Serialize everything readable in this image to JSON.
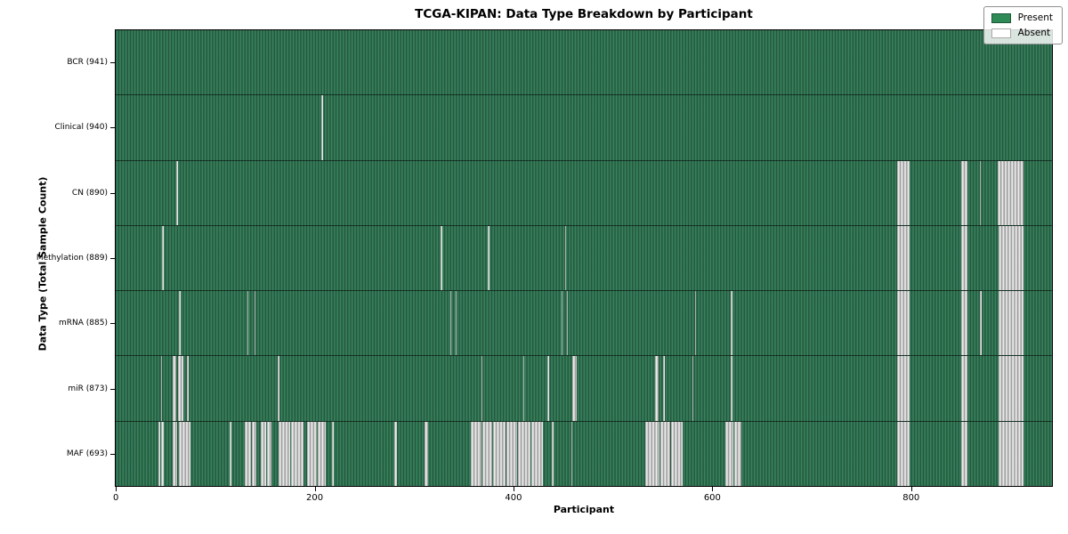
{
  "chart_data": {
    "type": "heatmap",
    "title": "TCGA-KIPAN: Data Type Breakdown by Participant",
    "xlabel": "Participant",
    "ylabel": "Data Type (Total Sample Count)",
    "x_ticks": [
      0,
      200,
      400,
      600,
      800
    ],
    "x_max": 941.5,
    "grid": false,
    "legend_position": "upper right",
    "colors": {
      "present": "#2e8b57",
      "present_edge": "#1d5638",
      "absent": "#ffffff",
      "absent_edge": "#aaaaaa"
    },
    "legend": [
      {
        "label": "Present",
        "color": "#2e8b57",
        "edge": "#1d5638"
      },
      {
        "label": "Absent",
        "color": "#ffffff",
        "edge": "#aaaaaa"
      }
    ],
    "rows": [
      {
        "name": "BCR",
        "count": 941,
        "absent": []
      },
      {
        "name": "Clinical",
        "count": 940,
        "absent": [
          [
            207,
            208.2
          ]
        ]
      },
      {
        "name": "CN",
        "count": 890,
        "absent": [
          [
            60.5,
            62.3
          ],
          [
            786,
            799
          ],
          [
            850.5,
            857
          ],
          [
            869,
            870.2
          ],
          [
            887.5,
            913
          ]
        ]
      },
      {
        "name": "Methylation",
        "count": 889,
        "absent": [
          [
            46.5,
            48
          ],
          [
            327,
            328.2
          ],
          [
            374.5,
            375.7
          ],
          [
            452,
            453.2
          ],
          [
            786,
            799
          ],
          [
            850.5,
            857
          ],
          [
            888.5,
            913
          ]
        ]
      },
      {
        "name": "mRNA",
        "count": 885,
        "absent": [
          [
            63.5,
            65
          ],
          [
            132.5,
            133.7
          ],
          [
            139.5,
            141
          ],
          [
            336.5,
            337.7
          ],
          [
            342,
            343
          ],
          [
            448.5,
            449.7
          ],
          [
            453.5,
            454.7
          ],
          [
            583,
            584
          ],
          [
            619,
            620
          ],
          [
            786,
            799
          ],
          [
            850.5,
            857
          ],
          [
            869.5,
            871
          ],
          [
            888.5,
            913
          ]
        ]
      },
      {
        "name": "miR",
        "count": 873,
        "absent": [
          [
            45.5,
            47
          ],
          [
            57.5,
            61
          ],
          [
            62.5,
            68.5
          ],
          [
            71.5,
            73
          ],
          [
            163,
            164.5
          ],
          [
            368,
            369.2
          ],
          [
            410,
            411.2
          ],
          [
            434.5,
            435.7
          ],
          [
            459,
            464
          ],
          [
            543,
            546.5
          ],
          [
            550.5,
            552
          ],
          [
            580,
            581.5
          ],
          [
            619,
            620.5
          ],
          [
            786,
            799
          ],
          [
            850.5,
            857
          ],
          [
            888.5,
            913
          ]
        ]
      },
      {
        "name": "MAF",
        "count": 693,
        "absent": [
          [
            43,
            45
          ],
          [
            46,
            48.5
          ],
          [
            57,
            62
          ],
          [
            63.5,
            75
          ],
          [
            115,
            116.5
          ],
          [
            130,
            136
          ],
          [
            137,
            141.5
          ],
          [
            146,
            151
          ],
          [
            152,
            156.5
          ],
          [
            164,
            175.5
          ],
          [
            176.5,
            188.5
          ],
          [
            192.5,
            202
          ],
          [
            203,
            211
          ],
          [
            218,
            219.5
          ],
          [
            280,
            283
          ],
          [
            311,
            314.5
          ],
          [
            357,
            368
          ],
          [
            369,
            379
          ],
          [
            380,
            392
          ],
          [
            393,
            404
          ],
          [
            405,
            417
          ],
          [
            418.5,
            430
          ],
          [
            439,
            440.5
          ],
          [
            458,
            459.5
          ],
          [
            533,
            547
          ],
          [
            548,
            557.5
          ],
          [
            559,
            570
          ],
          [
            613,
            621
          ],
          [
            622,
            629.5
          ],
          [
            786,
            799
          ],
          [
            850.5,
            857
          ],
          [
            888.5,
            913
          ]
        ]
      }
    ]
  }
}
